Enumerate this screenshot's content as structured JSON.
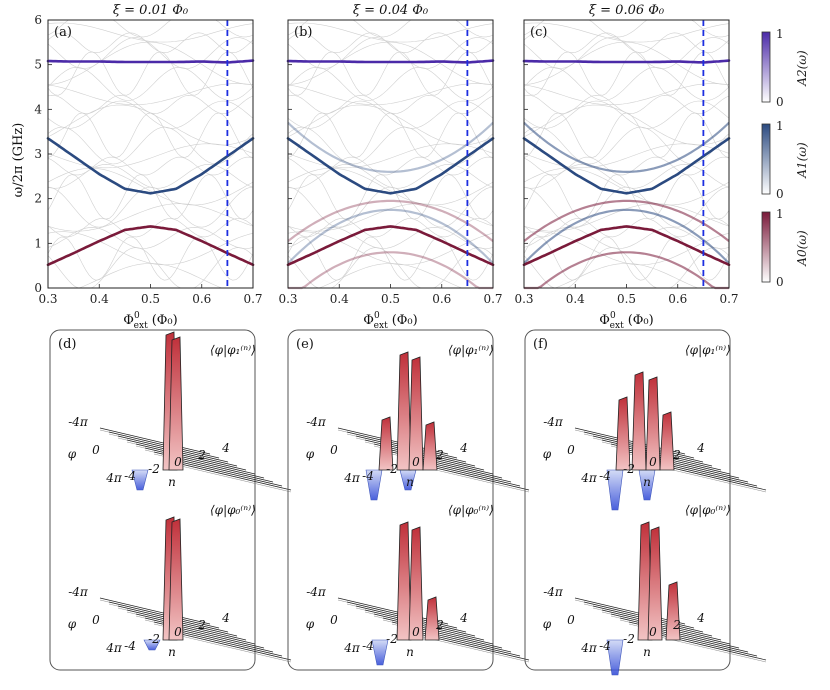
{
  "chart_data": {
    "type": "line",
    "panels": [
      {
        "label": "(a)",
        "title": "ξ = 0.01 Φ₀",
        "xi": 0.01,
        "branch_opacity": 0.0
      },
      {
        "label": "(b)",
        "title": "ξ = 0.04 Φ₀",
        "xi": 0.04,
        "branch_opacity": 0.35
      },
      {
        "label": "(c)",
        "title": "ξ = 0.06 Φ₀",
        "xi": 0.06,
        "branch_opacity": 0.55
      }
    ],
    "xlim": [
      0.3,
      0.7
    ],
    "ylim": [
      0,
      6
    ],
    "xticks": [
      "0.3",
      "0.4",
      "0.5",
      "0.6",
      "0.7"
    ],
    "yticks": [
      "0",
      "1",
      "2",
      "3",
      "4",
      "5",
      "6"
    ],
    "xlabel": "Φ⁰ext (Φ₀)",
    "xlabel_main": "Φ",
    "xlabel_sup": "0",
    "xlabel_sub": "ext",
    "xlabel_unit": "(Φ₀)",
    "ylabel": "ω/2π (GHz)",
    "vline_x": 0.65,
    "series": [
      {
        "name": "A2(ω)",
        "color": "#4b2aa8",
        "x": [
          0.3,
          0.35,
          0.4,
          0.45,
          0.5,
          0.55,
          0.6,
          0.65,
          0.7
        ],
        "values": [
          5.08,
          5.07,
          5.07,
          5.06,
          5.06,
          5.06,
          5.07,
          5.05,
          5.09
        ]
      },
      {
        "name": "A1(ω)",
        "color": "#2b4a80",
        "x": [
          0.3,
          0.35,
          0.4,
          0.45,
          0.5,
          0.55,
          0.6,
          0.65,
          0.7
        ],
        "values": [
          3.35,
          2.95,
          2.55,
          2.22,
          2.12,
          2.22,
          2.55,
          2.95,
          3.35
        ]
      },
      {
        "name": "A0(ω)",
        "color": "#7a1a3a",
        "x": [
          0.3,
          0.35,
          0.4,
          0.45,
          0.5,
          0.55,
          0.6,
          0.65,
          0.7
        ],
        "values": [
          0.52,
          0.78,
          1.05,
          1.3,
          1.38,
          1.3,
          1.05,
          0.78,
          0.52
        ]
      }
    ],
    "colorbars": [
      {
        "label": "A2(ω)",
        "min": "0",
        "max": "1",
        "color": "#4b2aa8"
      },
      {
        "label": "A1(ω)",
        "min": "0",
        "max": "1",
        "color": "#2b4a80"
      },
      {
        "label": "A0(ω)",
        "min": "0",
        "max": "1",
        "color": "#7a1a3a"
      }
    ],
    "wavefunction_panels": [
      {
        "label": "(f)"
      },
      {
        "label": "(e)"
      },
      {
        "label": "(d)"
      }
    ],
    "wavefunction_titles": {
      "excited": "⟨φ|φ₁⁽ⁿ⁾⟩",
      "ground": "⟨φ|φ₀⁽ⁿ⁾⟩"
    },
    "phi_axis": {
      "name": "φ",
      "ticks": [
        "-4π",
        "0",
        "4π"
      ]
    },
    "n_axis": {
      "name": "n",
      "ticks": [
        "-4",
        "-2",
        "0",
        "2",
        "4"
      ]
    }
  }
}
